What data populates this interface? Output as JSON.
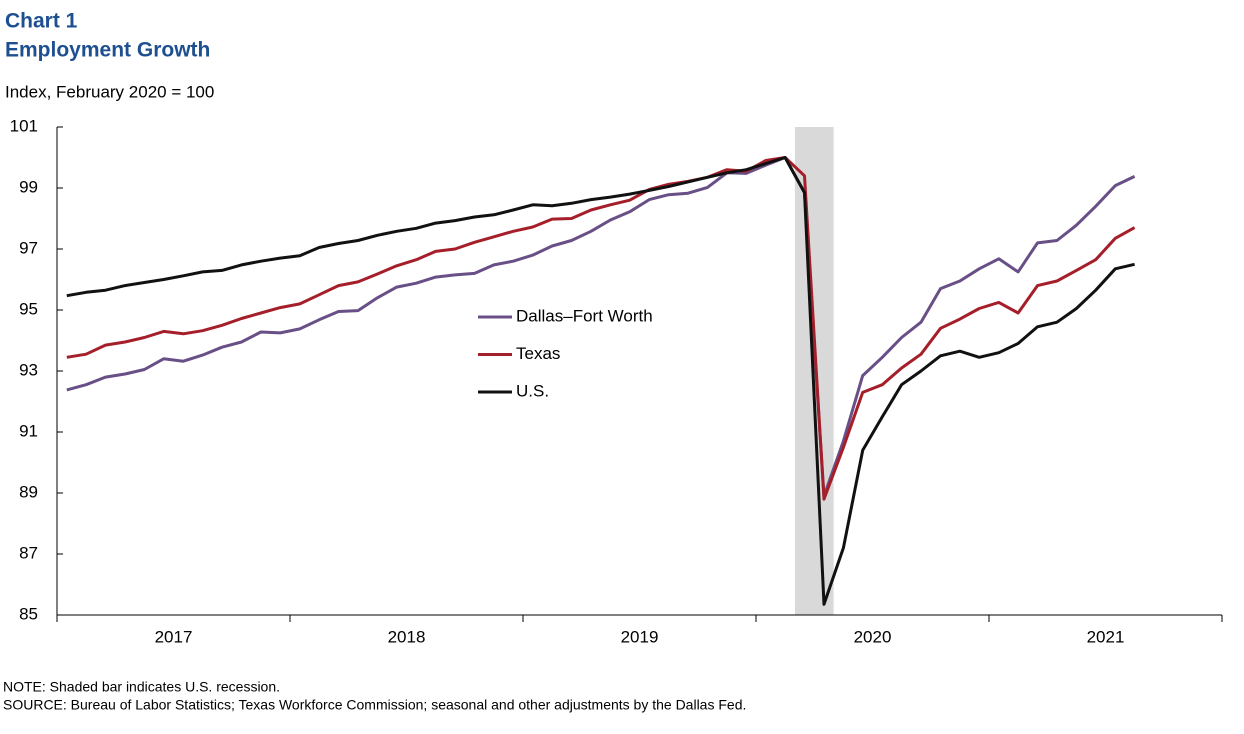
{
  "chart_data": {
    "type": "line",
    "title": "Chart 1",
    "subtitle": "Employment Growth",
    "y_label": "Index, February 2020 = 100",
    "note": "NOTE:  Shaded bar indicates U.S. recession.",
    "source": "SOURCE:  Bureau of  Labor Statistics; Texas  Workforce Commission;  seasonal and other adjustments  by the Dallas Fed.",
    "x": [
      2017.042,
      2017.125,
      2017.208,
      2017.292,
      2017.375,
      2017.458,
      2017.542,
      2017.625,
      2017.708,
      2017.792,
      2017.875,
      2017.958,
      2018.042,
      2018.125,
      2018.208,
      2018.292,
      2018.375,
      2018.458,
      2018.542,
      2018.625,
      2018.708,
      2018.792,
      2018.875,
      2018.958,
      2019.042,
      2019.125,
      2019.208,
      2019.292,
      2019.375,
      2019.458,
      2019.542,
      2019.625,
      2019.708,
      2019.792,
      2019.875,
      2019.958,
      2020.042,
      2020.125,
      2020.208,
      2020.292,
      2020.375,
      2020.458,
      2020.542,
      2020.625,
      2020.708,
      2020.792,
      2020.875,
      2020.958,
      2021.042,
      2021.125,
      2021.208,
      2021.292,
      2021.375,
      2021.458,
      2021.542,
      2021.625
    ],
    "series": [
      {
        "name": "Dallas–Fort Worth",
        "color": "#684f86",
        "values": [
          92.38,
          92.55,
          92.8,
          92.9,
          93.05,
          93.4,
          93.32,
          93.52,
          93.78,
          93.95,
          94.28,
          94.25,
          94.38,
          94.68,
          94.95,
          94.98,
          95.4,
          95.75,
          95.88,
          96.08,
          96.15,
          96.2,
          96.48,
          96.6,
          96.8,
          97.1,
          97.28,
          97.58,
          97.95,
          98.22,
          98.62,
          98.78,
          98.83,
          99.02,
          99.5,
          99.48,
          99.75,
          100,
          98.85,
          88.9,
          90.7,
          92.85,
          93.45,
          94.1,
          94.6,
          95.7,
          95.95,
          96.35,
          96.68,
          96.25,
          97.2,
          97.28,
          97.78,
          98.4,
          99.08,
          99.38
        ]
      },
      {
        "name": "Texas",
        "color": "#a51f2b",
        "values": [
          93.45,
          93.55,
          93.85,
          93.95,
          94.1,
          94.3,
          94.22,
          94.32,
          94.5,
          94.72,
          94.9,
          95.08,
          95.2,
          95.5,
          95.8,
          95.92,
          96.18,
          96.45,
          96.65,
          96.92,
          97.0,
          97.22,
          97.4,
          97.58,
          97.72,
          97.98,
          98.0,
          98.28,
          98.45,
          98.6,
          98.95,
          99.12,
          99.22,
          99.35,
          99.6,
          99.55,
          99.9,
          100,
          99.4,
          88.8,
          90.5,
          92.3,
          92.55,
          93.1,
          93.55,
          94.4,
          94.7,
          95.05,
          95.25,
          94.9,
          95.8,
          95.95,
          96.3,
          96.65,
          97.35,
          97.7
        ]
      },
      {
        "name": "U.S.",
        "color": "#111111",
        "values": [
          95.47,
          95.58,
          95.65,
          95.8,
          95.9,
          96.0,
          96.12,
          96.25,
          96.3,
          96.48,
          96.6,
          96.7,
          96.78,
          97.05,
          97.18,
          97.28,
          97.45,
          97.58,
          97.68,
          97.85,
          97.93,
          98.05,
          98.12,
          98.28,
          98.45,
          98.42,
          98.5,
          98.62,
          98.7,
          98.8,
          98.92,
          99.05,
          99.2,
          99.35,
          99.5,
          99.6,
          99.8,
          100,
          98.85,
          85.35,
          87.2,
          90.4,
          91.5,
          92.55,
          93.0,
          93.5,
          93.65,
          93.45,
          93.6,
          93.9,
          94.45,
          94.6,
          95.05,
          95.65,
          96.35,
          96.5
        ]
      }
    ],
    "recession": [
      2020.167,
      2020.333
    ],
    "recession_color": "#d9d9d9",
    "xlim": [
      2017,
      2022
    ],
    "xticks": [
      {
        "value": 2017.5,
        "label": "2017"
      },
      {
        "value": 2018.5,
        "label": "2018"
      },
      {
        "value": 2019.5,
        "label": "2019"
      },
      {
        "value": 2020.5,
        "label": "2020"
      },
      {
        "value": 2021.5,
        "label": "2021"
      }
    ],
    "ylim": [
      85,
      101
    ],
    "yticks": [
      85,
      87,
      89,
      91,
      93,
      95,
      97,
      99,
      101
    ],
    "legend": "center"
  }
}
